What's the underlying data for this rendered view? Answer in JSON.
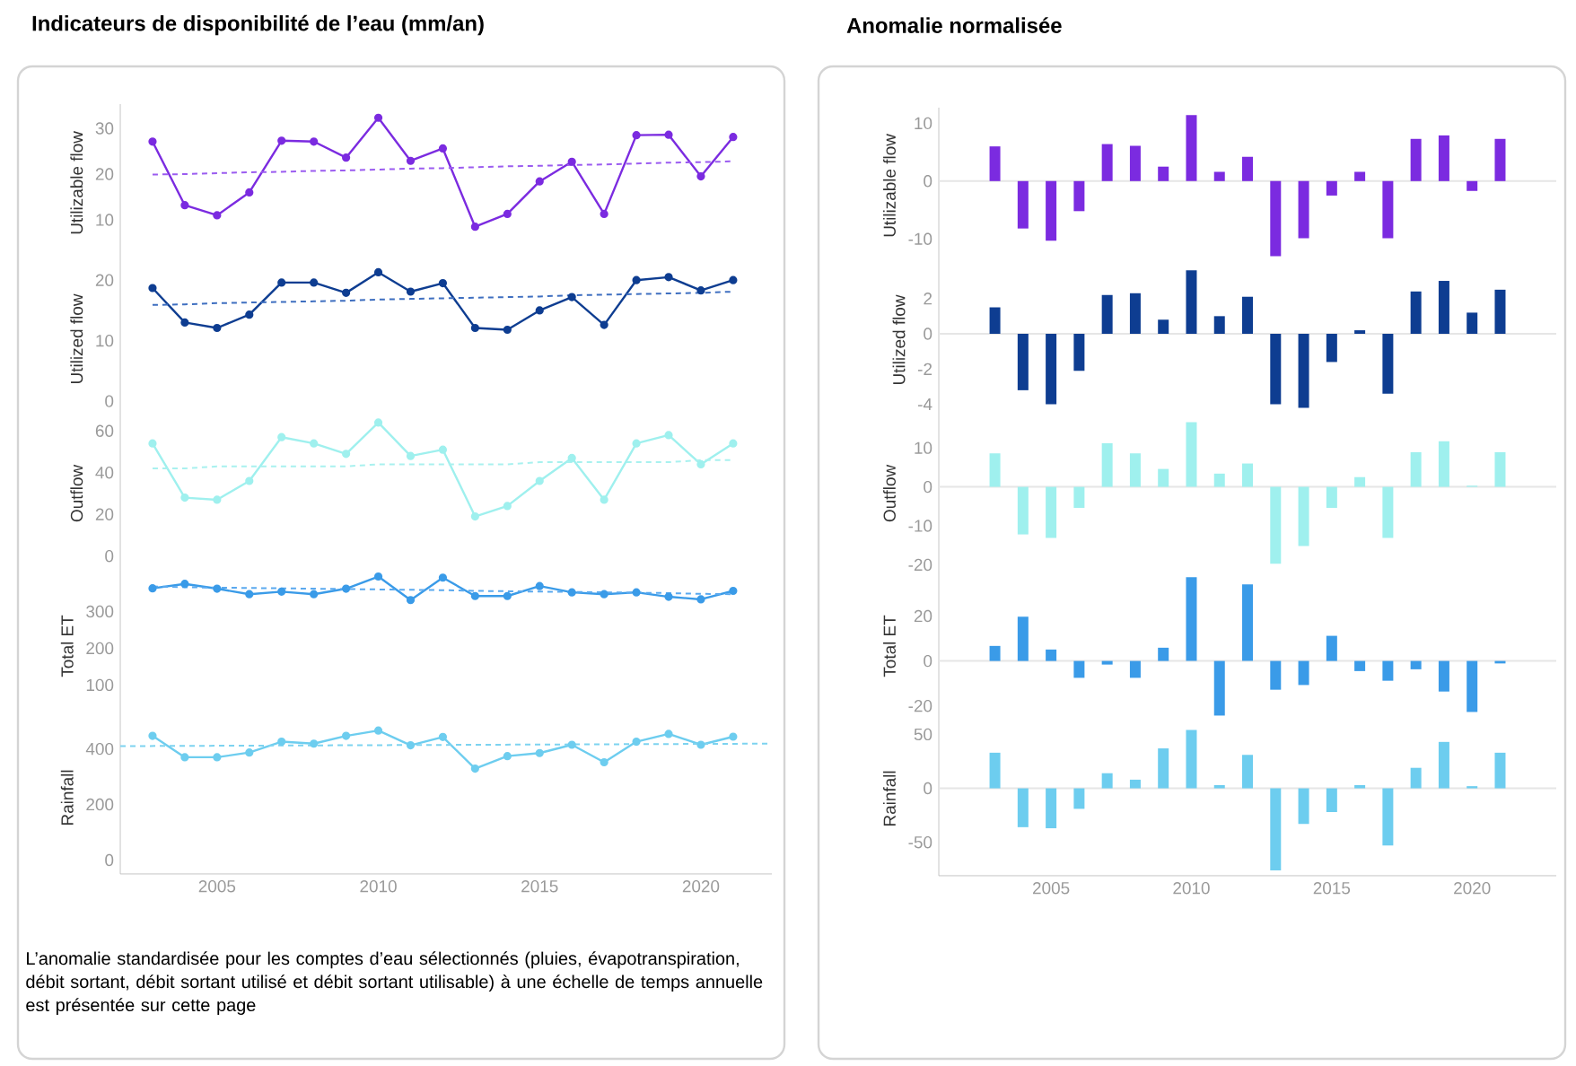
{
  "chart_data": [
    {
      "type": "line",
      "title": "Indicateurs de disponibilité de l’eau (mm/an)",
      "ylabel": "Utilizable flow",
      "x": [
        2003,
        2004,
        2005,
        2006,
        2007,
        2008,
        2009,
        2010,
        2011,
        2012,
        2013,
        2014,
        2015,
        2016,
        2017,
        2018,
        2019,
        2020,
        2021
      ],
      "ylim": [
        0.8,
        35.3
      ],
      "yticks": [
        10,
        20,
        30
      ],
      "tick_labels": "y",
      "marker": "circle",
      "series": [
        {
          "color": "#7b2be0",
          "values": [
            27.1,
            13.2,
            11.0,
            16.0,
            27.3,
            27.1,
            23.6,
            32.3,
            22.9,
            25.6,
            8.5,
            11.3,
            18.4,
            22.7,
            11.3,
            28.5,
            28.6,
            19.5,
            28.1
          ]
        },
        {
          "type": "line",
          "values": [
            19.9,
            20.0,
            20.2,
            20.4,
            20.5,
            20.7,
            20.8,
            21.0,
            21.2,
            21.3,
            21.5,
            21.7,
            21.8,
            22.0,
            22.1,
            22.3,
            22.5,
            22.6,
            22.8
          ],
          "color": "#9b5cf0",
          "line_style": "dashed",
          "marker": "none"
        }
      ]
    },
    {
      "type": "line",
      "ylabel": "Utilized flow",
      "x": [
        2003,
        2004,
        2005,
        2006,
        2007,
        2008,
        2009,
        2010,
        2011,
        2012,
        2013,
        2014,
        2015,
        2016,
        2017,
        2018,
        2019,
        2020,
        2021
      ],
      "ylim": [
        -2.5,
        23
      ],
      "yticks": [
        0,
        10,
        20
      ],
      "tick_labels": "y",
      "marker": "circle",
      "series": [
        {
          "color": "#0e3d91",
          "values": [
            18.7,
            13.0,
            12.1,
            14.3,
            19.6,
            19.6,
            17.9,
            21.3,
            18.1,
            19.5,
            12.1,
            11.8,
            15.0,
            17.2,
            12.6,
            20.0,
            20.5,
            18.3,
            20.0
          ]
        },
        {
          "type": "line",
          "values": [
            15.9,
            16.0,
            16.2,
            16.3,
            16.4,
            16.5,
            16.6,
            16.8,
            16.9,
            17.0,
            17.1,
            17.2,
            17.3,
            17.5,
            17.6,
            17.7,
            17.8,
            17.9,
            18.1
          ],
          "color": "#3f6fc0",
          "line_style": "dashed",
          "marker": "none"
        }
      ]
    },
    {
      "type": "line",
      "ylabel": "Outflow",
      "x": [
        2003,
        2004,
        2005,
        2006,
        2007,
        2008,
        2009,
        2010,
        2011,
        2012,
        2013,
        2014,
        2015,
        2016,
        2017,
        2018,
        2019,
        2020,
        2021
      ],
      "ylim": [
        -7,
        67
      ],
      "yticks": [
        0,
        20,
        40,
        60
      ],
      "tick_labels": "y",
      "marker": "circle",
      "series": [
        {
          "color": "#9ff0ee",
          "values": [
            54,
            28,
            27,
            36,
            57,
            54,
            49,
            64,
            48,
            51,
            19,
            24,
            36,
            47,
            27,
            54,
            58,
            44,
            54
          ]
        },
        {
          "type": "line",
          "values": [
            42,
            42,
            43,
            43,
            43,
            43,
            43,
            44,
            44,
            44,
            44,
            44,
            45,
            45,
            45,
            45,
            45,
            46,
            46
          ],
          "color": "#a9f1ef",
          "line_style": "dashed",
          "marker": "none"
        }
      ]
    },
    {
      "type": "line",
      "ylabel": "Total ET",
      "x": [
        2003,
        2004,
        2005,
        2006,
        2007,
        2008,
        2009,
        2010,
        2011,
        2012,
        2013,
        2014,
        2015,
        2016,
        2017,
        2018,
        2019,
        2020,
        2021
      ],
      "ylim": [
        1,
        411
      ],
      "yticks": [
        100,
        200,
        300
      ],
      "tick_labels": "y",
      "marker": "circle",
      "series": [
        {
          "color": "#3a9be8",
          "values": [
            363,
            375,
            362,
            347,
            354,
            347,
            362,
            395,
            331,
            392,
            342,
            342,
            369,
            352,
            347,
            352,
            340,
            333,
            356
          ]
        },
        {
          "type": "line",
          "values": [
            368,
            366,
            365,
            364,
            363,
            362,
            361,
            360,
            359,
            358,
            356,
            355,
            354,
            353,
            352,
            351,
            350,
            348,
            347
          ],
          "color": "#5aa9ef",
          "line_style": "dashed",
          "marker": "none"
        }
      ]
    },
    {
      "type": "line",
      "ylabel": "Rainfall",
      "x": [
        2003,
        2004,
        2005,
        2006,
        2007,
        2008,
        2009,
        2010,
        2011,
        2012,
        2013,
        2014,
        2015,
        2016,
        2017,
        2018,
        2019,
        2020,
        2021
      ],
      "xlim": [
        2002,
        2022.2
      ],
      "ylim": [
        -50,
        499
      ],
      "yticks": [
        0,
        200,
        400
      ],
      "xticks": [
        2005,
        2010,
        2015,
        2020
      ],
      "marker": "circle",
      "annotations": [
        "L’anomalie standardisée pour les comptes d’eau sélectionnés (pluies, évapotranspiration, débit sortant, débit sortant utilisé et débit sortant utilisable) à une échelle de temps annuelle est présentée sur cette page"
      ],
      "series": [
        {
          "color": "#6dcdef",
          "values": [
            447,
            370,
            370,
            387,
            426,
            419,
            447,
            466,
            413,
            443,
            329,
            374,
            385,
            415,
            352,
            426,
            454,
            415,
            444
          ]
        },
        {
          "type": "line",
          "x": [
            2002,
            2022.2
          ],
          "values": [
            410,
            419
          ],
          "color": "#7dd3f0",
          "line_style": "dashed",
          "marker": "none"
        }
      ]
    },
    {
      "type": "bar",
      "title": "Anomalie normalisée",
      "ylabel": "Utilizable flow",
      "x": [
        2003,
        2004,
        2005,
        2006,
        2007,
        2008,
        2009,
        2010,
        2011,
        2012,
        2013,
        2014,
        2015,
        2016,
        2017,
        2018,
        2019,
        2020,
        2021
      ],
      "ylim": [
        -14.3,
        12.7
      ],
      "yticks": [
        -10,
        0,
        10
      ],
      "tick_labels": "y",
      "ref_lines": [
        {
          "axis": "y",
          "value": 0,
          "color": "#e6e6e6"
        }
      ],
      "series": [
        {
          "color": "#7b2be0",
          "values": [
            6.0,
            -8.2,
            -10.3,
            -5.2,
            6.4,
            6.1,
            2.5,
            11.4,
            1.6,
            4.2,
            -13.0,
            -9.9,
            -2.5,
            1.6,
            -9.9,
            7.3,
            7.9,
            -1.7,
            7.3
          ]
        }
      ]
    },
    {
      "type": "bar",
      "ylabel": "Utilized flow",
      "x": [
        2003,
        2004,
        2005,
        2006,
        2007,
        2008,
        2009,
        2010,
        2011,
        2012,
        2013,
        2014,
        2015,
        2016,
        2017,
        2018,
        2019,
        2020,
        2021
      ],
      "ylim": [
        -4.68,
        3.97
      ],
      "yticks": [
        -4,
        -2,
        0,
        2
      ],
      "tick_labels": "y",
      "ref_lines": [
        {
          "axis": "y",
          "value": 0,
          "color": "#e6e6e6"
        }
      ],
      "series": [
        {
          "color": "#0e3d91",
          "values": [
            1.5,
            -3.2,
            -4.0,
            -2.1,
            2.2,
            2.3,
            0.8,
            3.6,
            1.0,
            2.1,
            -4.0,
            -4.2,
            -1.6,
            0.2,
            -3.4,
            2.4,
            3.0,
            1.2,
            2.5
          ]
        }
      ]
    },
    {
      "type": "bar",
      "ylabel": "Outflow",
      "x": [
        2003,
        2004,
        2005,
        2006,
        2007,
        2008,
        2009,
        2010,
        2011,
        2012,
        2013,
        2014,
        2015,
        2016,
        2017,
        2018,
        2019,
        2020,
        2021
      ],
      "ylim": [
        -21.5,
        18.1
      ],
      "yticks": [
        -20,
        -10,
        0,
        10
      ],
      "tick_labels": "y",
      "ref_lines": [
        {
          "axis": "y",
          "value": 0,
          "color": "#e6e6e6"
        }
      ],
      "series": [
        {
          "color": "#9ff0ee",
          "values": [
            8.6,
            -12.2,
            -13.1,
            -5.4,
            11.2,
            8.6,
            4.6,
            16.6,
            3.4,
            6.0,
            -19.7,
            -15.2,
            -5.4,
            2.5,
            -13.1,
            8.9,
            11.7,
            0.3,
            8.9
          ]
        }
      ]
    },
    {
      "type": "bar",
      "ylabel": "Total ET",
      "x": [
        2003,
        2004,
        2005,
        2006,
        2007,
        2008,
        2009,
        2010,
        2011,
        2012,
        2013,
        2014,
        2015,
        2016,
        2017,
        2018,
        2019,
        2020,
        2021
      ],
      "ylim": [
        -26.9,
        40.2
      ],
      "yticks": [
        -20,
        0,
        20
      ],
      "tick_labels": "y",
      "ref_lines": [
        {
          "axis": "y",
          "value": 0,
          "color": "#e6e6e6"
        }
      ],
      "series": [
        {
          "color": "#3a9be8",
          "values": [
            6.7,
            19.7,
            5.1,
            -7.5,
            -1.6,
            -7.5,
            5.9,
            37.3,
            -24.3,
            34.1,
            -12.8,
            -10.7,
            11.2,
            -4.5,
            -8.8,
            -3.7,
            -13.6,
            -22.7,
            -1.1
          ]
        }
      ]
    },
    {
      "type": "bar",
      "ylabel": "Rainfall",
      "x": [
        2003,
        2004,
        2005,
        2006,
        2007,
        2008,
        2009,
        2010,
        2011,
        2012,
        2013,
        2014,
        2015,
        2016,
        2017,
        2018,
        2019,
        2020,
        2021
      ],
      "xlim": [
        2001,
        2023
      ],
      "ylim": [
        -81,
        62
      ],
      "yticks": [
        -50,
        0,
        50
      ],
      "xticks": [
        2005,
        2010,
        2015,
        2020
      ],
      "ref_lines": [
        {
          "axis": "y",
          "value": 0,
          "color": "#e6e6e6"
        }
      ],
      "series": [
        {
          "color": "#6dcdef",
          "values": [
            33,
            -36,
            -37,
            -19,
            14,
            8,
            37,
            54,
            3,
            31,
            -76,
            -33,
            -22,
            3,
            -53,
            19,
            43,
            2,
            33
          ]
        }
      ]
    }
  ]
}
